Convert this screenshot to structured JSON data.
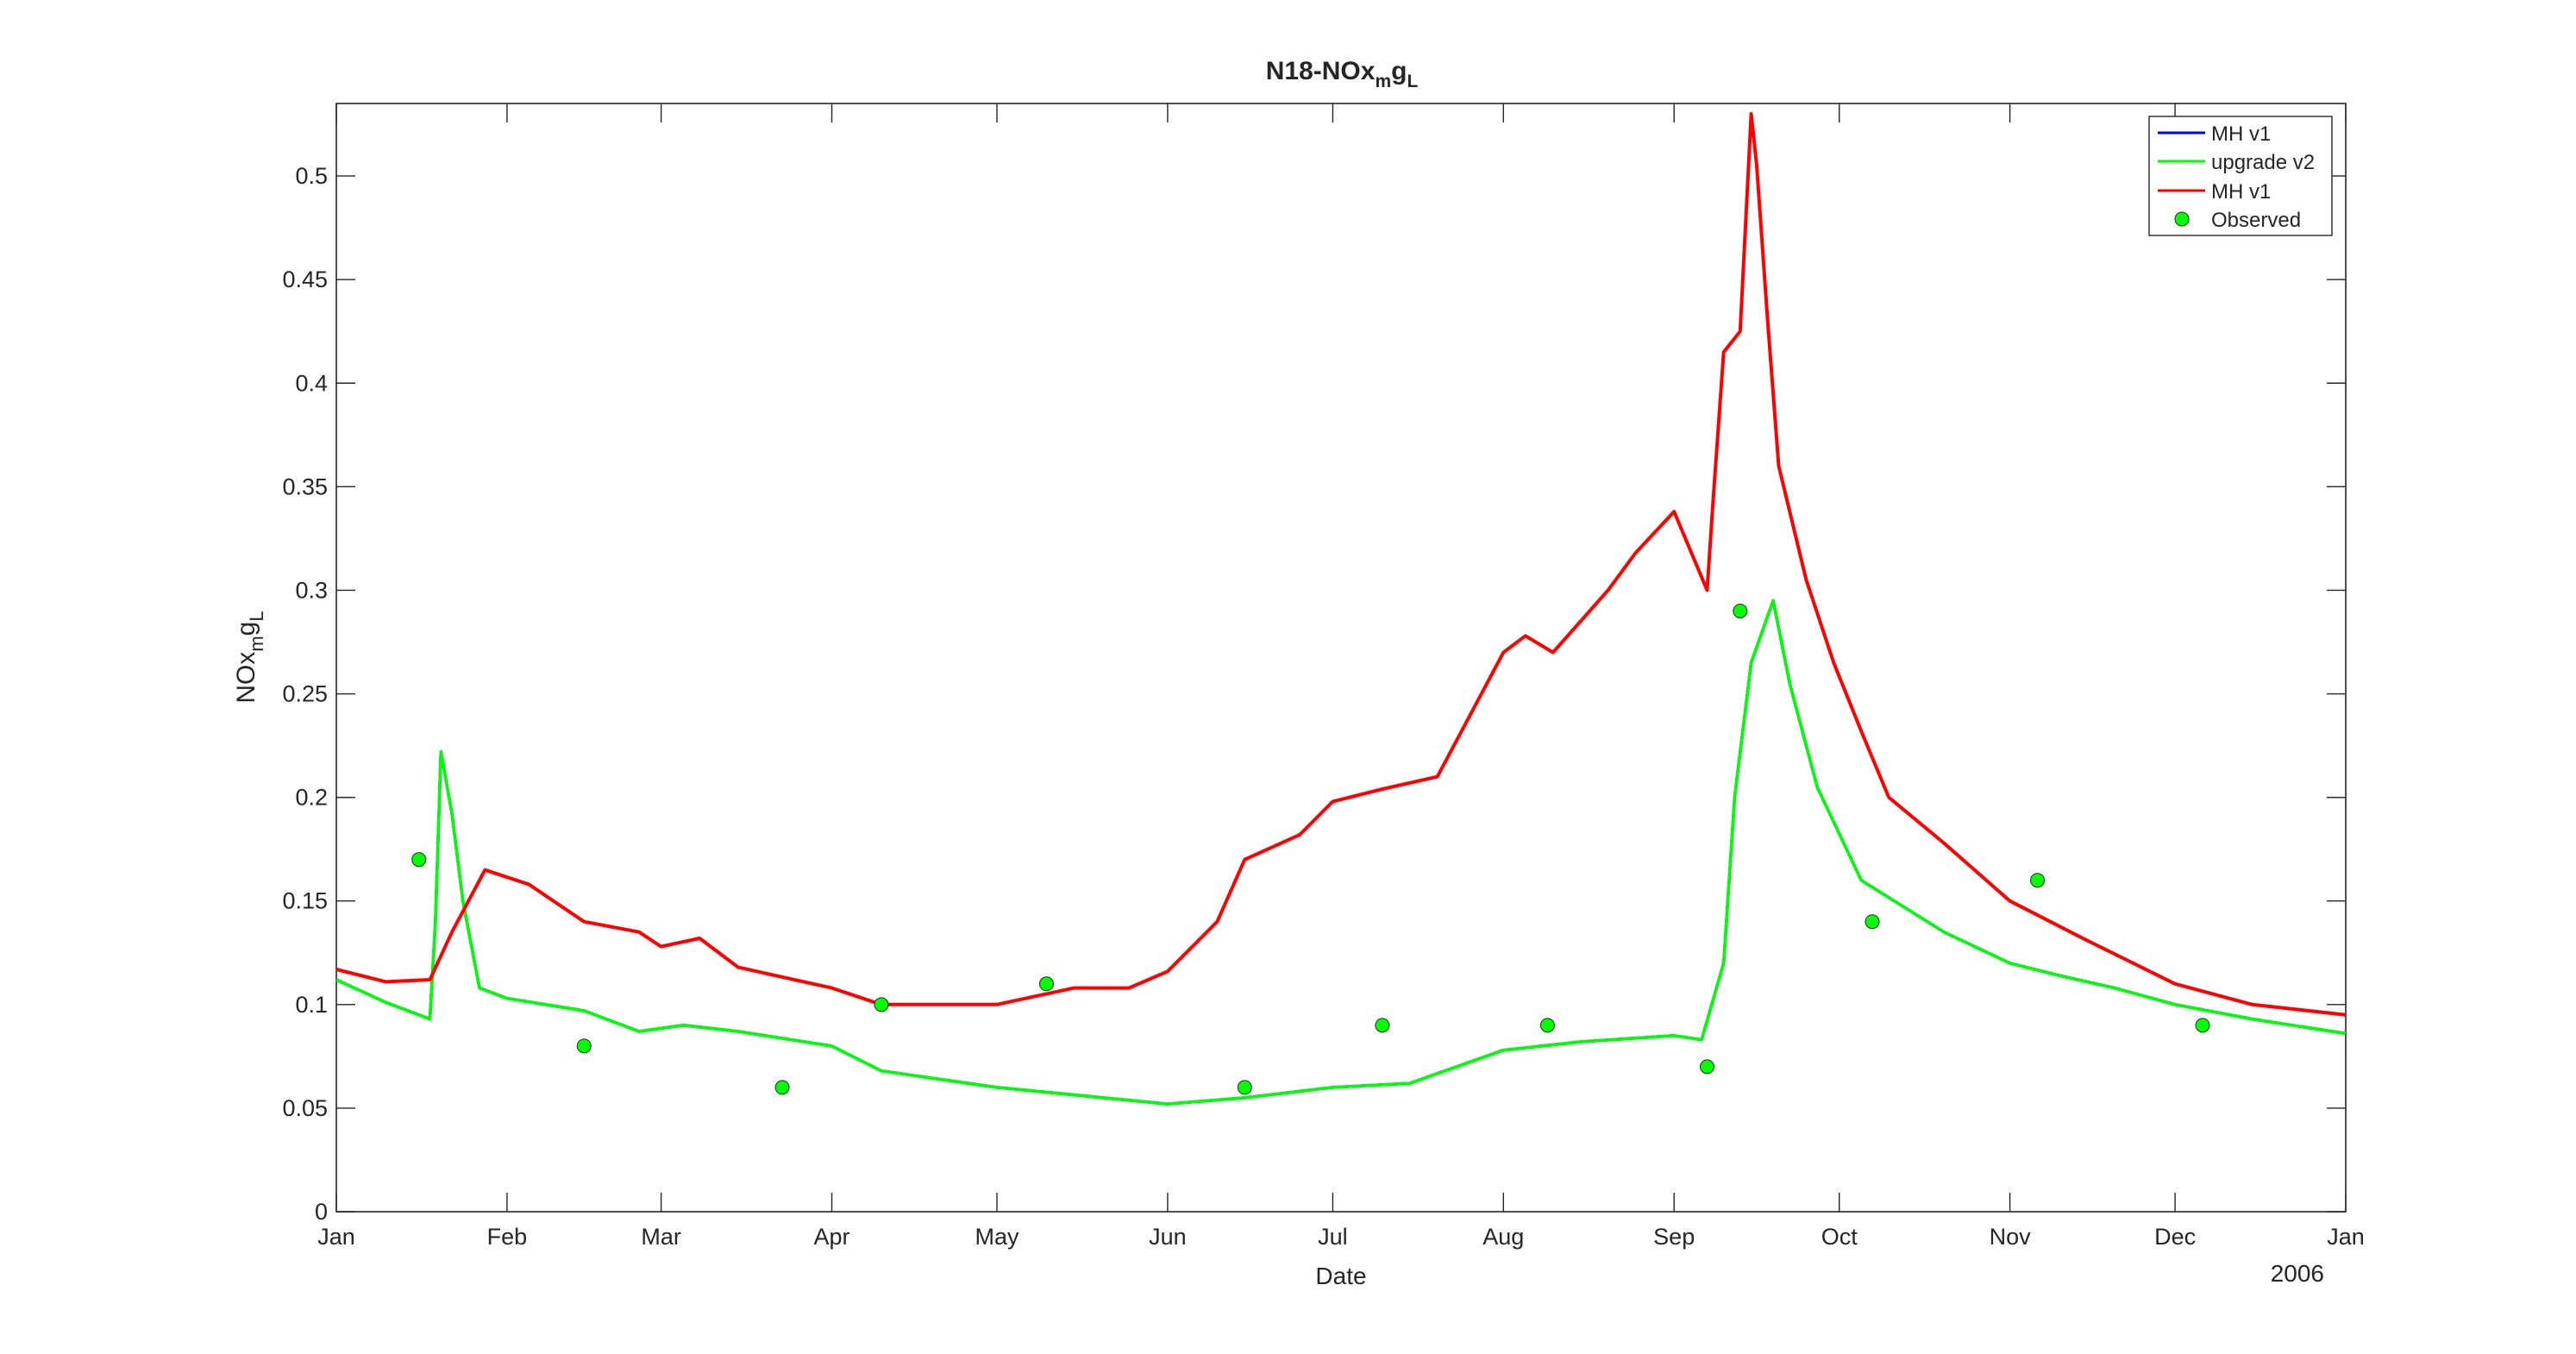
{
  "chart_data": {
    "type": "line",
    "title": "N18-NOx",
    "title_sub": "m",
    "title_mid": "g",
    "title_sub2": "L",
    "xlabel": "Date",
    "ylabel": "NOx",
    "ylabel_sub": "m",
    "ylabel_mid": "g",
    "ylabel_sub2": "L",
    "year_label": "2006",
    "xlim": [
      "2006-01-01",
      "2007-01-01"
    ],
    "ylim": [
      0,
      0.535
    ],
    "x_ticks": [
      {
        "date": "2006-01-01",
        "label": "Jan"
      },
      {
        "date": "2006-02-01",
        "label": "Feb"
      },
      {
        "date": "2006-03-01",
        "label": "Mar"
      },
      {
        "date": "2006-04-01",
        "label": "Apr"
      },
      {
        "date": "2006-05-01",
        "label": "May"
      },
      {
        "date": "2006-06-01",
        "label": "Jun"
      },
      {
        "date": "2006-07-01",
        "label": "Jul"
      },
      {
        "date": "2006-08-01",
        "label": "Aug"
      },
      {
        "date": "2006-09-01",
        "label": "Sep"
      },
      {
        "date": "2006-10-01",
        "label": "Oct"
      },
      {
        "date": "2006-11-01",
        "label": "Nov"
      },
      {
        "date": "2006-12-01",
        "label": "Dec"
      },
      {
        "date": "2007-01-01",
        "label": "Jan"
      }
    ],
    "y_ticks": [
      {
        "value": 0,
        "label": "0"
      },
      {
        "value": 0.05,
        "label": "0.05"
      },
      {
        "value": 0.1,
        "label": "0.1"
      },
      {
        "value": 0.15,
        "label": "0.15"
      },
      {
        "value": 0.2,
        "label": "0.2"
      },
      {
        "value": 0.25,
        "label": "0.25"
      },
      {
        "value": 0.3,
        "label": "0.3"
      },
      {
        "value": 0.35,
        "label": "0.35"
      },
      {
        "value": 0.4,
        "label": "0.4"
      },
      {
        "value": 0.45,
        "label": "0.45"
      },
      {
        "value": 0.5,
        "label": "0.5"
      }
    ],
    "grid": false,
    "legend_position": "top-right",
    "legend": [
      {
        "label": "MH v1",
        "kind": "line",
        "color": "#0000ff"
      },
      {
        "label": "upgrade v2",
        "kind": "line",
        "color": "#00ff00"
      },
      {
        "label": "MH v1",
        "kind": "line",
        "color": "#ff0000"
      },
      {
        "label": "Observed",
        "kind": "marker",
        "color": "#00ff00"
      }
    ],
    "series": [
      {
        "name": "MH v1",
        "color": "#0000ff",
        "style": "line",
        "points": [
          [
            "2006-01-01",
            0.112
          ],
          [
            "2006-01-10",
            0.101
          ],
          [
            "2006-01-17",
            0.094
          ],
          [
            "2006-01-18",
            0.093
          ],
          [
            "2006-01-19",
            0.14
          ],
          [
            "2006-01-20",
            0.222
          ],
          [
            "2006-01-22",
            0.192
          ],
          [
            "2006-01-24",
            0.15
          ],
          [
            "2006-01-27",
            0.108
          ],
          [
            "2006-02-01",
            0.103
          ],
          [
            "2006-02-15",
            0.097
          ],
          [
            "2006-02-25",
            0.087
          ],
          [
            "2006-03-05",
            0.09
          ],
          [
            "2006-03-15",
            0.087
          ],
          [
            "2006-04-01",
            0.08
          ],
          [
            "2006-04-10",
            0.068
          ],
          [
            "2006-05-01",
            0.06
          ],
          [
            "2006-06-01",
            0.052
          ],
          [
            "2006-06-15",
            0.055
          ],
          [
            "2006-07-01",
            0.06
          ],
          [
            "2006-07-15",
            0.062
          ],
          [
            "2006-08-01",
            0.078
          ],
          [
            "2006-08-15",
            0.082
          ],
          [
            "2006-09-01",
            0.085
          ],
          [
            "2006-09-06",
            0.083
          ],
          [
            "2006-09-10",
            0.12
          ],
          [
            "2006-09-12",
            0.2
          ],
          [
            "2006-09-15",
            0.265
          ],
          [
            "2006-09-19",
            0.295
          ],
          [
            "2006-09-22",
            0.255
          ],
          [
            "2006-09-27",
            0.205
          ],
          [
            "2006-10-05",
            0.16
          ],
          [
            "2006-10-20",
            0.135
          ],
          [
            "2006-11-01",
            0.12
          ],
          [
            "2006-11-10",
            0.114
          ],
          [
            "2006-11-20",
            0.108
          ],
          [
            "2006-12-01",
            0.1
          ],
          [
            "2006-12-15",
            0.093
          ],
          [
            "2007-01-01",
            0.086
          ]
        ]
      },
      {
        "name": "upgrade v2",
        "color": "#00ff00",
        "style": "line",
        "points": [
          [
            "2006-01-01",
            0.112
          ],
          [
            "2006-01-10",
            0.101
          ],
          [
            "2006-01-17",
            0.094
          ],
          [
            "2006-01-18",
            0.093
          ],
          [
            "2006-01-19",
            0.14
          ],
          [
            "2006-01-20",
            0.222
          ],
          [
            "2006-01-22",
            0.192
          ],
          [
            "2006-01-24",
            0.15
          ],
          [
            "2006-01-27",
            0.108
          ],
          [
            "2006-02-01",
            0.103
          ],
          [
            "2006-02-15",
            0.097
          ],
          [
            "2006-02-25",
            0.087
          ],
          [
            "2006-03-05",
            0.09
          ],
          [
            "2006-03-15",
            0.087
          ],
          [
            "2006-04-01",
            0.08
          ],
          [
            "2006-04-10",
            0.068
          ],
          [
            "2006-05-01",
            0.06
          ],
          [
            "2006-06-01",
            0.052
          ],
          [
            "2006-06-15",
            0.055
          ],
          [
            "2006-07-01",
            0.06
          ],
          [
            "2006-07-15",
            0.062
          ],
          [
            "2006-08-01",
            0.078
          ],
          [
            "2006-08-15",
            0.082
          ],
          [
            "2006-09-01",
            0.085
          ],
          [
            "2006-09-06",
            0.083
          ],
          [
            "2006-09-10",
            0.12
          ],
          [
            "2006-09-12",
            0.2
          ],
          [
            "2006-09-15",
            0.265
          ],
          [
            "2006-09-19",
            0.295
          ],
          [
            "2006-09-22",
            0.255
          ],
          [
            "2006-09-27",
            0.205
          ],
          [
            "2006-10-05",
            0.16
          ],
          [
            "2006-10-20",
            0.135
          ],
          [
            "2006-11-01",
            0.12
          ],
          [
            "2006-11-10",
            0.114
          ],
          [
            "2006-11-20",
            0.108
          ],
          [
            "2006-12-01",
            0.1
          ],
          [
            "2006-12-15",
            0.093
          ],
          [
            "2007-01-01",
            0.086
          ]
        ]
      },
      {
        "name": "MH v1",
        "color": "#ff0000",
        "style": "line",
        "points": [
          [
            "2006-01-01",
            0.117
          ],
          [
            "2006-01-10",
            0.111
          ],
          [
            "2006-01-18",
            0.112
          ],
          [
            "2006-01-22",
            0.135
          ],
          [
            "2006-01-28",
            0.165
          ],
          [
            "2006-02-05",
            0.158
          ],
          [
            "2006-02-15",
            0.14
          ],
          [
            "2006-02-25",
            0.135
          ],
          [
            "2006-03-01",
            0.128
          ],
          [
            "2006-03-08",
            0.132
          ],
          [
            "2006-03-15",
            0.118
          ],
          [
            "2006-04-01",
            0.108
          ],
          [
            "2006-04-10",
            0.1
          ],
          [
            "2006-05-01",
            0.1
          ],
          [
            "2006-05-15",
            0.108
          ],
          [
            "2006-05-25",
            0.108
          ],
          [
            "2006-06-01",
            0.116
          ],
          [
            "2006-06-10",
            0.14
          ],
          [
            "2006-06-15",
            0.17
          ],
          [
            "2006-06-25",
            0.182
          ],
          [
            "2006-07-01",
            0.198
          ],
          [
            "2006-07-10",
            0.204
          ],
          [
            "2006-07-20",
            0.21
          ],
          [
            "2006-08-01",
            0.27
          ],
          [
            "2006-08-05",
            0.278
          ],
          [
            "2006-08-10",
            0.27
          ],
          [
            "2006-08-20",
            0.3
          ],
          [
            "2006-08-25",
            0.318
          ],
          [
            "2006-09-01",
            0.338
          ],
          [
            "2006-09-07",
            0.3
          ],
          [
            "2006-09-08",
            0.34
          ],
          [
            "2006-09-10",
            0.415
          ],
          [
            "2006-09-13",
            0.425
          ],
          [
            "2006-09-15",
            0.53
          ],
          [
            "2006-09-16",
            0.505
          ],
          [
            "2006-09-18",
            0.43
          ],
          [
            "2006-09-20",
            0.36
          ],
          [
            "2006-09-25",
            0.305
          ],
          [
            "2006-09-30",
            0.265
          ],
          [
            "2006-10-05",
            0.232
          ],
          [
            "2006-10-10",
            0.2
          ],
          [
            "2006-10-20",
            0.178
          ],
          [
            "2006-11-01",
            0.15
          ],
          [
            "2006-11-15",
            0.131
          ],
          [
            "2006-12-01",
            0.11
          ],
          [
            "2006-12-15",
            0.1
          ],
          [
            "2007-01-01",
            0.095
          ]
        ]
      }
    ],
    "observed": [
      [
        "2006-01-16",
        0.17
      ],
      [
        "2006-02-15",
        0.08
      ],
      [
        "2006-03-23",
        0.06
      ],
      [
        "2006-04-10",
        0.1
      ],
      [
        "2006-05-10",
        0.11
      ],
      [
        "2006-06-15",
        0.06
      ],
      [
        "2006-07-10",
        0.09
      ],
      [
        "2006-08-09",
        0.09
      ],
      [
        "2006-09-07",
        0.07
      ],
      [
        "2006-09-13",
        0.29
      ],
      [
        "2006-10-07",
        0.14
      ],
      [
        "2006-11-06",
        0.16
      ],
      [
        "2006-12-06",
        0.09
      ]
    ]
  }
}
